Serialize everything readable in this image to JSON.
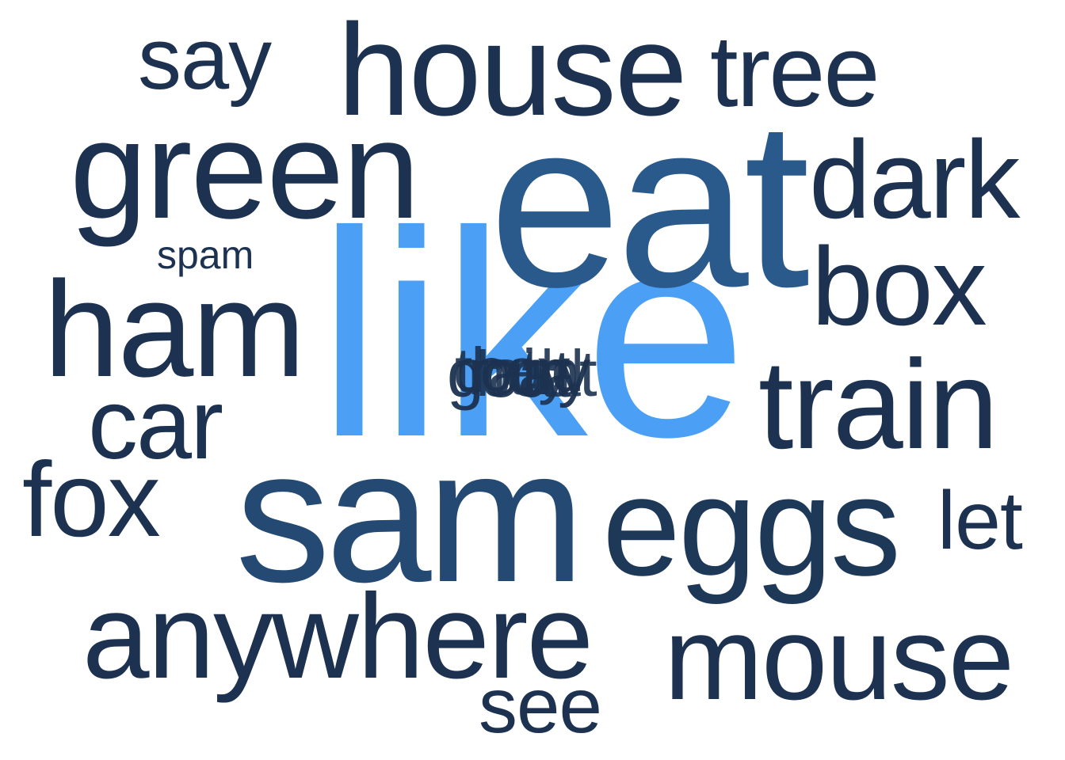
{
  "colors": {
    "background": "#ffffff",
    "dark": "#1c3250",
    "mid": "#2a5a8c",
    "light": "#4ba0f5"
  },
  "words": [
    {
      "id": "like",
      "text": "like",
      "color": "#4ba0f5"
    },
    {
      "id": "eat",
      "text": "eat",
      "color": "#2a5a8c"
    },
    {
      "id": "sam",
      "text": "sam",
      "color": "#244a73"
    },
    {
      "id": "green",
      "text": "green",
      "color": "#1c3250"
    },
    {
      "id": "house",
      "text": "house",
      "color": "#1c3250"
    },
    {
      "id": "eggs",
      "text": "eggs",
      "color": "#1e3858"
    },
    {
      "id": "ham",
      "text": "ham",
      "color": "#1c3250"
    },
    {
      "id": "anywhere",
      "text": "anywhere",
      "color": "#1c3250"
    },
    {
      "id": "mouse",
      "text": "mouse",
      "color": "#1c3250"
    },
    {
      "id": "train",
      "text": "train",
      "color": "#1c3250"
    },
    {
      "id": "dark",
      "text": "dark",
      "color": "#1c3250"
    },
    {
      "id": "box",
      "text": "box",
      "color": "#1c3250"
    },
    {
      "id": "tree",
      "text": "tree",
      "color": "#1c3250"
    },
    {
      "id": "car",
      "text": "car",
      "color": "#1c3250"
    },
    {
      "id": "fox",
      "text": "fox",
      "color": "#1c3250"
    },
    {
      "id": "say",
      "text": "say",
      "color": "#1c3250"
    },
    {
      "id": "let",
      "text": "let",
      "color": "#1c3250"
    },
    {
      "id": "see",
      "text": "see",
      "color": "#1c3250"
    },
    {
      "id": "spam",
      "text": "spam",
      "color": "#1c3250"
    },
    {
      "id": "cluster-1",
      "text": "goat",
      "color": "#1c3250"
    },
    {
      "id": "cluster-2",
      "text": "they",
      "color": "#1c3250"
    },
    {
      "id": "cluster-3",
      "text": "rain",
      "color": "#1c3250"
    },
    {
      "id": "cluster-4",
      "text": "boat",
      "color": "#1c3250"
    },
    {
      "id": "cluster-5",
      "text": "could",
      "color": "#1c3250"
    },
    {
      "id": "cluster-6",
      "text": "try",
      "color": "#1c3250"
    }
  ]
}
